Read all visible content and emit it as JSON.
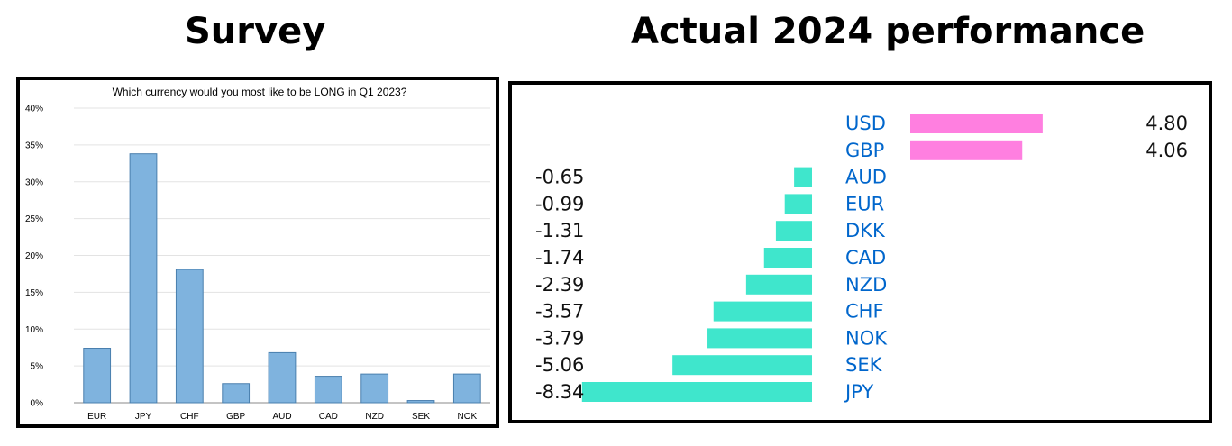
{
  "headings": {
    "survey": "Survey",
    "actual": "Actual 2024 performance"
  },
  "chart_data": [
    {
      "type": "bar",
      "title": "Which currency would you most like to be LONG in Q1 2023?",
      "categories": [
        "EUR",
        "JPY",
        "CHF",
        "GBP",
        "AUD",
        "CAD",
        "NZD",
        "SEK",
        "NOK"
      ],
      "values": [
        7.4,
        33.8,
        18.1,
        2.6,
        6.8,
        3.6,
        3.9,
        0.3,
        3.9
      ],
      "ylim": [
        0,
        40
      ],
      "yticks": [
        "0%",
        "5%",
        "10%",
        "15%",
        "20%",
        "25%",
        "30%",
        "35%",
        "40%"
      ],
      "xlabel": "",
      "ylabel": "",
      "grid": true,
      "bar_color": "#7fb3de",
      "bar_edge_color": "#4a7fae"
    },
    {
      "type": "bar",
      "orientation": "horizontal",
      "categories": [
        "USD",
        "GBP",
        "AUD",
        "EUR",
        "DKK",
        "CAD",
        "NZD",
        "CHF",
        "NOK",
        "SEK",
        "JPY"
      ],
      "values": [
        4.8,
        4.06,
        -0.65,
        -0.99,
        -1.31,
        -1.74,
        -2.39,
        -3.57,
        -3.79,
        -5.06,
        -8.34
      ],
      "labels": [
        "4.80",
        "4.06",
        "-0.65",
        "-0.99",
        "-1.31",
        "-1.74",
        "-2.39",
        "-3.57",
        "-3.79",
        "-5.06",
        "-8.34"
      ],
      "positive_color": "#ff7fe0",
      "negative_color": "#3fe6cc",
      "label_color": "#0066cc"
    }
  ]
}
